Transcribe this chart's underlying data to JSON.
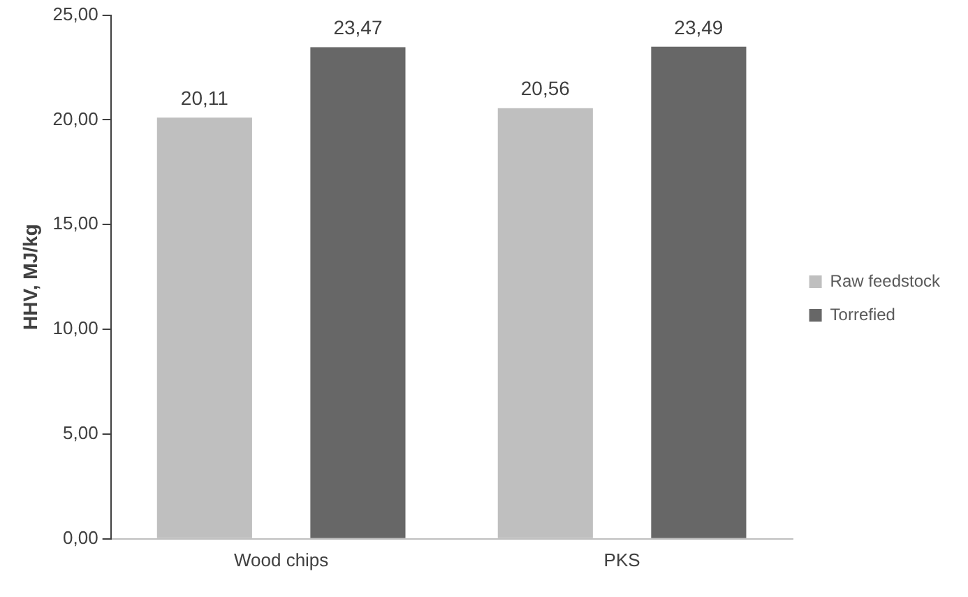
{
  "chart_data": {
    "type": "bar",
    "ylabel": "HHV, MJ/kg",
    "categories": [
      "Wood chips",
      "PKS"
    ],
    "series": [
      {
        "name": "Raw feedstock",
        "color": "#bfbfbf",
        "values": [
          20.11,
          20.56
        ],
        "value_labels": [
          "20,11",
          "20,56"
        ]
      },
      {
        "name": "Torrefied",
        "color": "#676767",
        "values": [
          23.47,
          23.49
        ],
        "value_labels": [
          "23,47",
          "23,49"
        ]
      }
    ],
    "ylim": [
      0,
      25
    ],
    "yticks": [
      {
        "value": 0,
        "label": "0,00"
      },
      {
        "value": 5,
        "label": "5,00"
      },
      {
        "value": 10,
        "label": "10,00"
      },
      {
        "value": 15,
        "label": "15,00"
      },
      {
        "value": 20,
        "label": "20,00"
      },
      {
        "value": 25,
        "label": "25,00"
      }
    ],
    "grid": false,
    "legend": "right"
  }
}
